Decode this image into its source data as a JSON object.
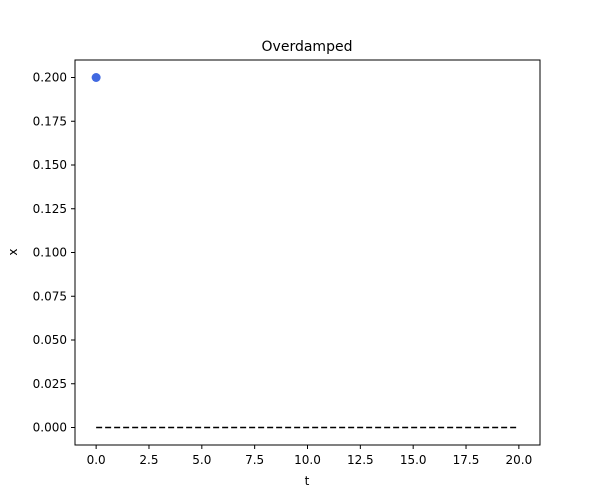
{
  "chart_data": {
    "type": "line",
    "title": "Overdamped",
    "xlabel": "t",
    "ylabel": "x",
    "xlim": [
      -1.0,
      21.0
    ],
    "ylim": [
      -0.01,
      0.21
    ],
    "grid": false,
    "x_ticks": [
      0.0,
      2.5,
      5.0,
      7.5,
      10.0,
      12.5,
      15.0,
      17.5,
      20.0
    ],
    "x_tick_labels": [
      "0.0",
      "2.5",
      "5.0",
      "7.5",
      "10.0",
      "12.5",
      "15.0",
      "17.5",
      "20.0"
    ],
    "y_ticks": [
      0.0,
      0.025,
      0.05,
      0.075,
      0.1,
      0.125,
      0.15,
      0.175,
      0.2
    ],
    "y_tick_labels": [
      "0.000",
      "0.025",
      "0.050",
      "0.075",
      "0.100",
      "0.125",
      "0.150",
      "0.175",
      "0.200"
    ],
    "series": [
      {
        "kind": "line",
        "style": "dashed",
        "color": "#000000",
        "x": [
          0,
          20
        ],
        "y": [
          0,
          0
        ]
      },
      {
        "kind": "scatter",
        "color": "#4169e1",
        "x": [
          0
        ],
        "y": [
          0.2
        ]
      }
    ]
  }
}
